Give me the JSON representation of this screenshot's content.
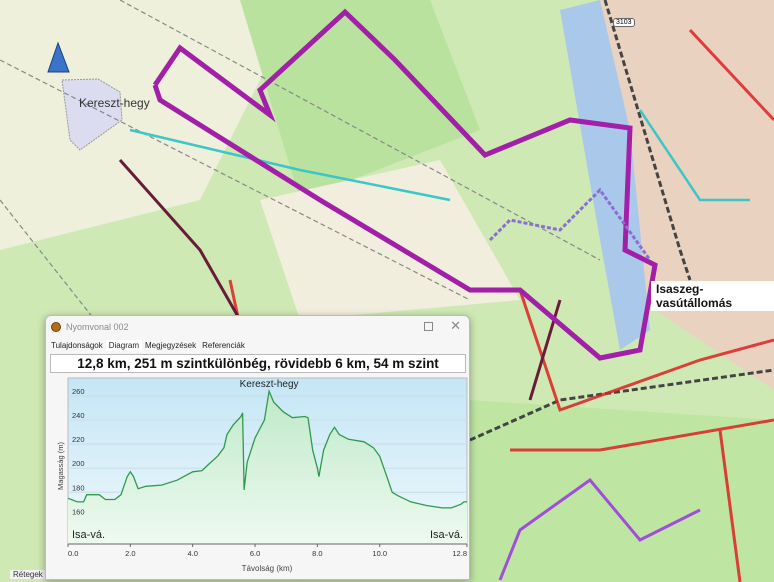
{
  "map": {
    "labels": {
      "hill": "Kereszt-hegy",
      "station": "Isaszeg-vasútállomás",
      "road_number": "3103",
      "layers": "Rétegek"
    },
    "colors": {
      "track": "#a21fa8",
      "forest": "#b7e29a",
      "water": "#a9c8ea",
      "town": "#e9d2c0"
    }
  },
  "window": {
    "title": "Nyomvonal 002",
    "tabs": [
      {
        "label": "Tulajdonságok"
      },
      {
        "label": "Diagram",
        "active": true
      },
      {
        "label": "Megjegyzések"
      },
      {
        "label": "Referenciák"
      }
    ],
    "summary": "12,8 km, 251 m szintkülönbég, rövidebb 6 km, 54 m szint"
  },
  "chart_data": {
    "type": "area",
    "xlabel": "Távolság (km)",
    "ylabel": "Magasság (m)",
    "xlim": [
      0,
      12.8
    ],
    "ylim": [
      137,
      275
    ],
    "xticks": [
      "0.0",
      "2.0",
      "4.0",
      "6.0",
      "8.0",
      "10.0",
      "12.8"
    ],
    "yticks": [
      "160",
      "180",
      "200",
      "220",
      "240",
      "260"
    ],
    "grid": true,
    "annotations": [
      {
        "text": "Kereszt-hegy",
        "x": 6.45,
        "y": 264
      },
      {
        "text": "Isa-vá.",
        "x": 0,
        "y": 150
      },
      {
        "text": "Isa-vá.",
        "x": 12.8,
        "y": 150
      }
    ],
    "line_color": "#2f9a4c",
    "x": [
      0,
      0.3,
      0.5,
      0.6,
      0.8,
      1.0,
      1.2,
      1.5,
      1.7,
      1.9,
      2.0,
      2.1,
      2.25,
      2.5,
      3.0,
      3.5,
      4.0,
      4.3,
      4.5,
      4.8,
      5.0,
      5.1,
      5.3,
      5.55,
      5.6,
      5.65,
      5.75,
      6.0,
      6.3,
      6.45,
      6.6,
      6.9,
      7.2,
      7.6,
      7.7,
      7.85,
      8.0,
      8.05,
      8.2,
      8.4,
      8.55,
      8.7,
      9.0,
      9.5,
      9.8,
      10.0,
      10.2,
      10.4,
      10.6,
      11.0,
      11.5,
      12.0,
      12.3,
      12.6,
      12.7,
      12.8
    ],
    "y": [
      175,
      172,
      172,
      178,
      178,
      178,
      174,
      174,
      178,
      193,
      197,
      193,
      183,
      185,
      186,
      190,
      197,
      198,
      203,
      210,
      217,
      228,
      236,
      243,
      246,
      182,
      205,
      225,
      240,
      264,
      255,
      247,
      242,
      243,
      242,
      215,
      200,
      193,
      215,
      228,
      234,
      228,
      224,
      222,
      217,
      210,
      195,
      180,
      177,
      172,
      169,
      167,
      167,
      170,
      172,
      172
    ]
  }
}
